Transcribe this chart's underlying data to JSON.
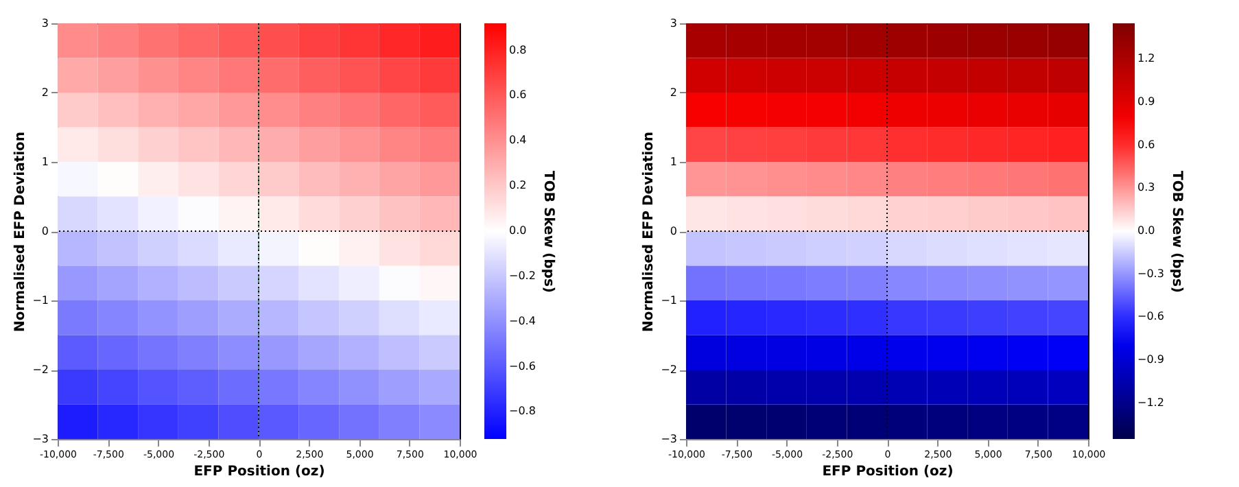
{
  "chart_data": [
    {
      "type": "heatmap",
      "xlabel": "EFP Position (oz)",
      "ylabel": "Normalised EFP Deviation",
      "clabel": "TOB Skew (bps)",
      "x": [
        -9000,
        -7000,
        -5000,
        -3000,
        -1000,
        1000,
        3000,
        5000,
        7000,
        9000
      ],
      "cells": [
        [
          0.42,
          0.46,
          0.51,
          0.55,
          0.6,
          0.64,
          0.69,
          0.73,
          0.78,
          0.82
        ],
        [
          0.31,
          0.35,
          0.4,
          0.44,
          0.49,
          0.53,
          0.58,
          0.62,
          0.67,
          0.71
        ],
        [
          0.19,
          0.23,
          0.28,
          0.32,
          0.37,
          0.41,
          0.46,
          0.5,
          0.55,
          0.59
        ],
        [
          0.08,
          0.12,
          0.17,
          0.21,
          0.26,
          0.3,
          0.35,
          0.39,
          0.44,
          0.48
        ],
        [
          -0.03,
          0.01,
          0.06,
          0.1,
          0.15,
          0.19,
          0.24,
          0.28,
          0.33,
          0.37
        ],
        [
          -0.14,
          -0.1,
          -0.05,
          -0.01,
          0.04,
          0.08,
          0.13,
          0.17,
          0.22,
          0.26
        ],
        [
          -0.26,
          -0.22,
          -0.17,
          -0.13,
          -0.08,
          -0.04,
          0.01,
          0.05,
          0.1,
          0.14
        ],
        [
          -0.37,
          -0.33,
          -0.28,
          -0.24,
          -0.19,
          -0.15,
          -0.1,
          -0.06,
          -0.01,
          0.03
        ],
        [
          -0.48,
          -0.44,
          -0.39,
          -0.35,
          -0.3,
          -0.26,
          -0.21,
          -0.17,
          -0.12,
          -0.08
        ],
        [
          -0.59,
          -0.55,
          -0.5,
          -0.46,
          -0.41,
          -0.37,
          -0.32,
          -0.28,
          -0.23,
          -0.19
        ],
        [
          -0.71,
          -0.67,
          -0.62,
          -0.58,
          -0.53,
          -0.49,
          -0.44,
          -0.4,
          -0.35,
          -0.31
        ],
        [
          -0.82,
          -0.78,
          -0.73,
          -0.69,
          -0.64,
          -0.6,
          -0.55,
          -0.51,
          -0.46,
          -0.42
        ]
      ],
      "colors": [
        "#0000ff",
        "#ffffff",
        "#ff0000"
      ],
      "clim": [
        -0.92,
        0.92
      ],
      "cticks": [
        -0.8,
        -0.6,
        -0.4,
        -0.2,
        {
          "value": 0,
          "label": "0.0"
        },
        0.2,
        0.4,
        0.6,
        0.8
      ],
      "xlim": [
        -10000,
        10000
      ],
      "xticks": [
        {
          "value": -10000,
          "label": "-10,000"
        },
        {
          "value": -7500,
          "label": "-7,500"
        },
        {
          "value": -5000,
          "label": "-5,000"
        },
        {
          "value": -2500,
          "label": "-2,500"
        },
        {
          "value": 0,
          "label": "0"
        },
        {
          "value": 2500,
          "label": "2,500"
        },
        {
          "value": 5000,
          "label": "5,000"
        },
        {
          "value": 7500,
          "label": "7,500"
        },
        {
          "value": 10000,
          "label": "10,000"
        }
      ],
      "ylim": [
        -3,
        3
      ],
      "yticks": [
        -3,
        -2,
        -1,
        0,
        1,
        2,
        3
      ],
      "ref_lines": [
        {
          "axis": "x",
          "value": 0,
          "color": "#4c9a6a",
          "line_style": "dashed"
        },
        {
          "axis": "x",
          "value": 0,
          "color": "#000000",
          "line_style": "dotted"
        },
        {
          "axis": "y",
          "value": 0,
          "color": "#000000",
          "line_style": "dotted"
        }
      ]
    },
    {
      "type": "heatmap",
      "xlabel": "EFP Position (oz)",
      "ylabel": "Normalised EFP Deviation",
      "clabel": "TOB Skew (bps)",
      "x": [
        -9000,
        -7000,
        -5000,
        -3000,
        -1000,
        1000,
        3000,
        5000,
        7000,
        9000
      ],
      "cells": [
        [
          1.22,
          1.23,
          1.24,
          1.25,
          1.26,
          1.28,
          1.29,
          1.3,
          1.31,
          1.32
        ],
        [
          0.99,
          1.0,
          1.01,
          1.02,
          1.03,
          1.05,
          1.06,
          1.07,
          1.08,
          1.09
        ],
        [
          0.76,
          0.77,
          0.78,
          0.79,
          0.8,
          0.82,
          0.83,
          0.84,
          0.85,
          0.86
        ],
        [
          0.53,
          0.54,
          0.55,
          0.56,
          0.57,
          0.59,
          0.6,
          0.61,
          0.62,
          0.63
        ],
        [
          0.3,
          0.31,
          0.32,
          0.33,
          0.34,
          0.36,
          0.37,
          0.38,
          0.39,
          0.4
        ],
        [
          0.07,
          0.08,
          0.09,
          0.1,
          0.11,
          0.13,
          0.14,
          0.15,
          0.16,
          0.17
        ],
        [
          -0.17,
          -0.16,
          -0.15,
          -0.14,
          -0.13,
          -0.11,
          -0.1,
          -0.09,
          -0.08,
          -0.07
        ],
        [
          -0.4,
          -0.39,
          -0.38,
          -0.37,
          -0.36,
          -0.34,
          -0.33,
          -0.32,
          -0.31,
          -0.3
        ],
        [
          -0.63,
          -0.62,
          -0.61,
          -0.6,
          -0.59,
          -0.57,
          -0.56,
          -0.55,
          -0.54,
          -0.53
        ],
        [
          -0.86,
          -0.85,
          -0.84,
          -0.83,
          -0.82,
          -0.8,
          -0.79,
          -0.78,
          -0.77,
          -0.76
        ],
        [
          -1.09,
          -1.08,
          -1.07,
          -1.06,
          -1.05,
          -1.03,
          -1.02,
          -1.01,
          -1.0,
          -0.99
        ],
        [
          -1.32,
          -1.31,
          -1.3,
          -1.29,
          -1.28,
          -1.26,
          -1.25,
          -1.24,
          -1.23,
          -1.22
        ]
      ],
      "colors": [
        "#00004c",
        "#0000ff",
        "#ffffff",
        "#ff0000",
        "#800000"
      ],
      "clim": [
        -1.45,
        1.45
      ],
      "cticks": [
        -1.2,
        -0.9,
        -0.6,
        -0.3,
        {
          "value": 0,
          "label": "0.0"
        },
        0.3,
        0.6,
        0.9,
        1.2
      ],
      "xlim": [
        -10000,
        10000
      ],
      "xticks": [
        {
          "value": -10000,
          "label": "-10,000"
        },
        {
          "value": -7500,
          "label": "-7,500"
        },
        {
          "value": -5000,
          "label": "-5,000"
        },
        {
          "value": -2500,
          "label": "-2,500"
        },
        {
          "value": 0,
          "label": "0"
        },
        {
          "value": 2500,
          "label": "2,500"
        },
        {
          "value": 5000,
          "label": "5,000"
        },
        {
          "value": 7500,
          "label": "7,500"
        },
        {
          "value": 10000,
          "label": "10,000"
        }
      ],
      "ylim": [
        -3,
        3
      ],
      "yticks": [
        -3,
        -2,
        -1,
        0,
        1,
        2,
        3
      ],
      "ref_lines": [
        {
          "axis": "x",
          "value": 0,
          "color": "#000000",
          "line_style": "dotted"
        },
        {
          "axis": "y",
          "value": 0,
          "color": "#000000",
          "line_style": "dotted"
        }
      ]
    }
  ]
}
